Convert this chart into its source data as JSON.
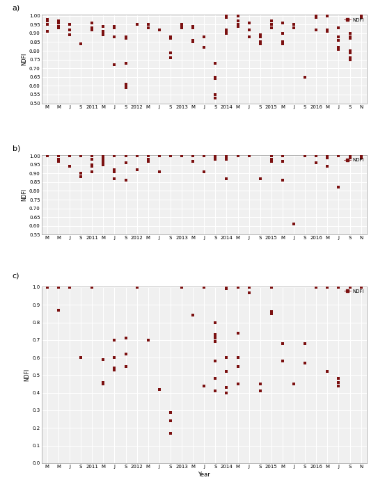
{
  "color": "#7B1010",
  "marker_size": 2.5,
  "panel_labels": [
    "a)",
    "b)",
    "c)"
  ],
  "ylabel": "NDFI",
  "xlabel_bottom": "Year",
  "legend_label": "NDFI",
  "background_color": "#f0f0f0",
  "grid_color": "#ffffff",
  "x_tick_labels": [
    "M",
    "M",
    "J",
    "S",
    "2011",
    "M",
    "J",
    "S",
    "2012",
    "M",
    "J",
    "S",
    "2013",
    "M",
    "J",
    "S",
    "2014",
    "M",
    "J",
    "S",
    "2015",
    "M",
    "J",
    "S",
    "2016",
    "M",
    "J",
    "S",
    "N"
  ],
  "x_tick_positions": [
    0,
    1,
    2,
    3,
    4,
    5,
    6,
    7,
    8,
    9,
    10,
    11,
    12,
    13,
    14,
    15,
    16,
    17,
    18,
    19,
    20,
    21,
    22,
    23,
    24,
    25,
    26,
    27,
    28
  ],
  "panel_a_ylim": [
    0.5,
    1.005
  ],
  "panel_a_yticks": [
    0.5,
    0.55,
    0.6,
    0.65,
    0.7,
    0.75,
    0.8,
    0.85,
    0.9,
    0.95,
    1.0
  ],
  "panel_a_data": [
    [
      0,
      0.91
    ],
    [
      0,
      0.95
    ],
    [
      0,
      0.97
    ],
    [
      0,
      0.98
    ],
    [
      1,
      0.96
    ],
    [
      1,
      0.97
    ],
    [
      1,
      0.94
    ],
    [
      1,
      0.93
    ],
    [
      2,
      0.95
    ],
    [
      2,
      0.92
    ],
    [
      2,
      0.89
    ],
    [
      3,
      0.84
    ],
    [
      4,
      0.92
    ],
    [
      4,
      0.93
    ],
    [
      4,
      0.96
    ],
    [
      5,
      0.94
    ],
    [
      5,
      0.91
    ],
    [
      5,
      0.9
    ],
    [
      5,
      0.89
    ],
    [
      6,
      0.94
    ],
    [
      6,
      0.93
    ],
    [
      6,
      0.88
    ],
    [
      6,
      0.72
    ],
    [
      7,
      0.88
    ],
    [
      7,
      0.87
    ],
    [
      7,
      0.73
    ],
    [
      7,
      0.61
    ],
    [
      7,
      0.6
    ],
    [
      7,
      0.59
    ],
    [
      8,
      0.95
    ],
    [
      9,
      0.95
    ],
    [
      9,
      0.93
    ],
    [
      10,
      0.92
    ],
    [
      11,
      0.88
    ],
    [
      11,
      0.87
    ],
    [
      11,
      0.79
    ],
    [
      11,
      0.76
    ],
    [
      12,
      0.95
    ],
    [
      12,
      0.94
    ],
    [
      12,
      0.93
    ],
    [
      13,
      0.94
    ],
    [
      13,
      0.93
    ],
    [
      13,
      0.86
    ],
    [
      13,
      0.85
    ],
    [
      14,
      0.88
    ],
    [
      14,
      0.82
    ],
    [
      15,
      0.73
    ],
    [
      15,
      0.65
    ],
    [
      15,
      0.64
    ],
    [
      15,
      0.55
    ],
    [
      15,
      0.53
    ],
    [
      16,
      1.0
    ],
    [
      16,
      0.99
    ],
    [
      16,
      0.92
    ],
    [
      16,
      0.91
    ],
    [
      16,
      0.9
    ],
    [
      17,
      1.0
    ],
    [
      17,
      0.97
    ],
    [
      17,
      0.95
    ],
    [
      17,
      0.94
    ],
    [
      18,
      0.96
    ],
    [
      18,
      0.92
    ],
    [
      18,
      0.88
    ],
    [
      19,
      0.89
    ],
    [
      19,
      0.88
    ],
    [
      19,
      0.85
    ],
    [
      19,
      0.84
    ],
    [
      20,
      0.97
    ],
    [
      20,
      0.95
    ],
    [
      20,
      0.93
    ],
    [
      21,
      0.96
    ],
    [
      21,
      0.9
    ],
    [
      21,
      0.85
    ],
    [
      21,
      0.84
    ],
    [
      22,
      0.95
    ],
    [
      22,
      0.93
    ],
    [
      23,
      0.65
    ],
    [
      24,
      1.0
    ],
    [
      24,
      0.99
    ],
    [
      24,
      0.92
    ],
    [
      25,
      1.0
    ],
    [
      25,
      0.92
    ],
    [
      25,
      0.91
    ],
    [
      26,
      0.93
    ],
    [
      26,
      0.88
    ],
    [
      26,
      0.86
    ],
    [
      26,
      0.82
    ],
    [
      26,
      0.81
    ],
    [
      27,
      0.9
    ],
    [
      27,
      0.88
    ],
    [
      27,
      0.87
    ],
    [
      27,
      0.8
    ],
    [
      27,
      0.79
    ],
    [
      27,
      0.76
    ],
    [
      27,
      0.75
    ],
    [
      28,
      1.0
    ],
    [
      28,
      0.99
    ]
  ],
  "panel_b_ylim": [
    0.55,
    1.005
  ],
  "panel_b_yticks": [
    0.55,
    0.6,
    0.65,
    0.7,
    0.75,
    0.8,
    0.85,
    0.9,
    0.95,
    1.0
  ],
  "panel_b_data": [
    [
      0,
      1.0
    ],
    [
      0,
      1.0
    ],
    [
      0,
      1.0
    ],
    [
      1,
      1.0
    ],
    [
      1,
      0.98
    ],
    [
      1,
      0.97
    ],
    [
      2,
      1.0
    ],
    [
      2,
      0.94
    ],
    [
      3,
      1.0
    ],
    [
      3,
      0.9
    ],
    [
      3,
      0.88
    ],
    [
      3,
      0.88
    ],
    [
      4,
      1.0
    ],
    [
      4,
      0.98
    ],
    [
      4,
      0.95
    ],
    [
      4,
      0.94
    ],
    [
      4,
      0.91
    ],
    [
      5,
      1.0
    ],
    [
      5,
      0.99
    ],
    [
      5,
      0.98
    ],
    [
      5,
      0.97
    ],
    [
      5,
      0.96
    ],
    [
      5,
      0.95
    ],
    [
      6,
      1.0
    ],
    [
      6,
      0.92
    ],
    [
      6,
      0.91
    ],
    [
      6,
      0.87
    ],
    [
      6,
      0.87
    ],
    [
      7,
      1.0
    ],
    [
      7,
      0.96
    ],
    [
      7,
      0.86
    ],
    [
      7,
      0.86
    ],
    [
      8,
      1.0
    ],
    [
      8,
      0.92
    ],
    [
      9,
      1.0
    ],
    [
      9,
      0.98
    ],
    [
      9,
      0.97
    ],
    [
      10,
      1.0
    ],
    [
      10,
      0.91
    ],
    [
      11,
      1.0
    ],
    [
      12,
      1.0
    ],
    [
      12,
      1.0
    ],
    [
      13,
      1.0
    ],
    [
      13,
      1.0
    ],
    [
      13,
      1.0
    ],
    [
      13,
      0.97
    ],
    [
      13,
      0.97
    ],
    [
      14,
      1.0
    ],
    [
      14,
      0.91
    ],
    [
      15,
      1.0
    ],
    [
      15,
      1.0
    ],
    [
      15,
      0.99
    ],
    [
      15,
      0.98
    ],
    [
      15,
      0.98
    ],
    [
      16,
      1.0
    ],
    [
      16,
      1.0
    ],
    [
      16,
      1.0
    ],
    [
      16,
      0.99
    ],
    [
      16,
      0.98
    ],
    [
      16,
      0.87
    ],
    [
      17,
      1.0
    ],
    [
      17,
      1.0
    ],
    [
      17,
      1.0
    ],
    [
      18,
      1.0
    ],
    [
      18,
      1.0
    ],
    [
      19,
      0.87
    ],
    [
      20,
      1.0
    ],
    [
      20,
      0.98
    ],
    [
      20,
      0.98
    ],
    [
      20,
      0.97
    ],
    [
      21,
      1.0
    ],
    [
      21,
      0.97
    ],
    [
      21,
      0.86
    ],
    [
      22,
      0.61
    ],
    [
      23,
      1.0
    ],
    [
      23,
      1.0
    ],
    [
      24,
      1.0
    ],
    [
      24,
      1.0
    ],
    [
      24,
      0.96
    ],
    [
      25,
      1.0
    ],
    [
      25,
      1.0
    ],
    [
      25,
      0.99
    ],
    [
      25,
      0.94
    ],
    [
      26,
      1.0
    ],
    [
      26,
      1.0
    ],
    [
      26,
      1.0
    ],
    [
      26,
      0.82
    ],
    [
      27,
      1.0
    ],
    [
      27,
      1.0
    ],
    [
      27,
      0.99
    ],
    [
      28,
      1.0
    ],
    [
      28,
      0.99
    ]
  ],
  "panel_c_ylim": [
    0.0,
    1.005
  ],
  "panel_c_yticks": [
    0.0,
    0.1,
    0.2,
    0.3,
    0.4,
    0.5,
    0.6,
    0.7,
    0.8,
    0.9,
    1.0
  ],
  "panel_c_data": [
    [
      0,
      1.0
    ],
    [
      0,
      1.0
    ],
    [
      1,
      0.87
    ],
    [
      1,
      1.0
    ],
    [
      2,
      1.0
    ],
    [
      3,
      0.6
    ],
    [
      4,
      1.0
    ],
    [
      4,
      1.0
    ],
    [
      4,
      1.0
    ],
    [
      5,
      0.59
    ],
    [
      5,
      0.45
    ],
    [
      5,
      0.46
    ],
    [
      5,
      0.46
    ],
    [
      6,
      0.7
    ],
    [
      6,
      0.6
    ],
    [
      6,
      0.54
    ],
    [
      6,
      0.53
    ],
    [
      7,
      0.71
    ],
    [
      7,
      0.62
    ],
    [
      7,
      0.55
    ],
    [
      8,
      1.0
    ],
    [
      8,
      1.0
    ],
    [
      8,
      1.0
    ],
    [
      8,
      1.0
    ],
    [
      9,
      0.7
    ],
    [
      10,
      0.42
    ],
    [
      11,
      0.17
    ],
    [
      11,
      0.24
    ],
    [
      11,
      0.29
    ],
    [
      12,
      1.0
    ],
    [
      12,
      1.0
    ],
    [
      12,
      1.0
    ],
    [
      13,
      0.84
    ],
    [
      13,
      0.84
    ],
    [
      14,
      1.0
    ],
    [
      14,
      1.0
    ],
    [
      14,
      0.44
    ],
    [
      14,
      0.44
    ],
    [
      15,
      0.8
    ],
    [
      15,
      0.73
    ],
    [
      15,
      0.72
    ],
    [
      15,
      0.71
    ],
    [
      15,
      0.69
    ],
    [
      15,
      0.58
    ],
    [
      15,
      0.48
    ],
    [
      15,
      0.41
    ],
    [
      16,
      1.0
    ],
    [
      16,
      1.0
    ],
    [
      16,
      0.99
    ],
    [
      16,
      0.6
    ],
    [
      16,
      0.52
    ],
    [
      16,
      0.52
    ],
    [
      16,
      0.43
    ],
    [
      16,
      0.4
    ],
    [
      17,
      1.0
    ],
    [
      17,
      0.74
    ],
    [
      17,
      0.6
    ],
    [
      17,
      0.55
    ],
    [
      17,
      0.45
    ],
    [
      18,
      1.0
    ],
    [
      18,
      0.97
    ],
    [
      19,
      0.45
    ],
    [
      19,
      0.41
    ],
    [
      20,
      1.0
    ],
    [
      20,
      1.0
    ],
    [
      20,
      1.0
    ],
    [
      20,
      0.86
    ],
    [
      20,
      0.85
    ],
    [
      21,
      0.68
    ],
    [
      21,
      0.58
    ],
    [
      22,
      0.45
    ],
    [
      22,
      0.45
    ],
    [
      23,
      0.68
    ],
    [
      23,
      0.57
    ],
    [
      24,
      1.0
    ],
    [
      24,
      1.0
    ],
    [
      24,
      1.0
    ],
    [
      24,
      1.0
    ],
    [
      25,
      1.0
    ],
    [
      25,
      1.0
    ],
    [
      25,
      0.52
    ],
    [
      26,
      1.0
    ],
    [
      26,
      1.0
    ],
    [
      26,
      0.48
    ],
    [
      26,
      0.46
    ],
    [
      26,
      0.44
    ],
    [
      27,
      1.0
    ],
    [
      27,
      1.0
    ],
    [
      28,
      1.0
    ],
    [
      28,
      1.0
    ]
  ]
}
